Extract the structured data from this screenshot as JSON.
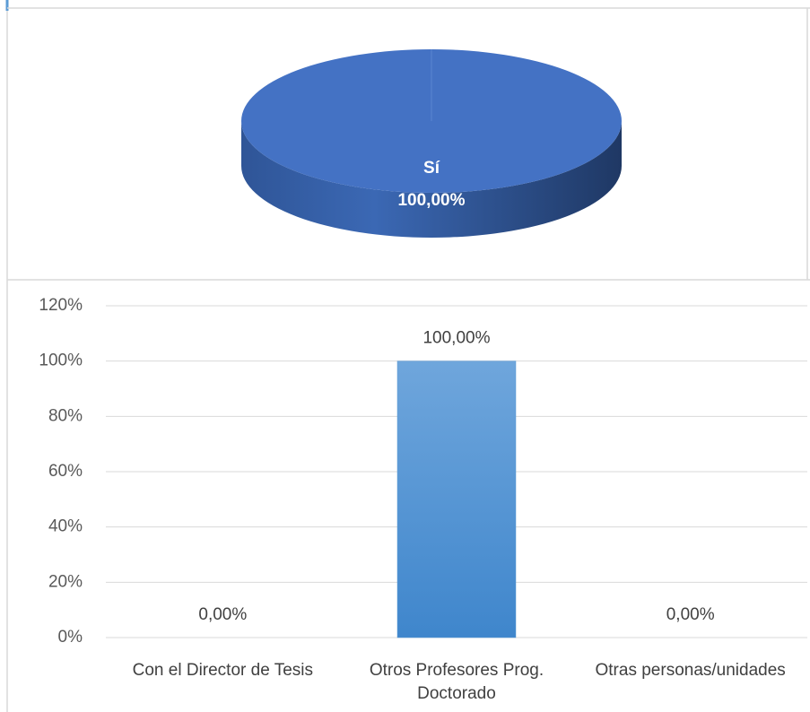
{
  "chart_data": [
    {
      "type": "pie",
      "categories": [
        "Sí"
      ],
      "values": [
        100
      ],
      "value_labels": [
        "100,00%"
      ],
      "colors": [
        "#4472c4"
      ]
    },
    {
      "type": "bar",
      "categories": [
        "Con el Director de Tesis",
        "Otros Profesores Prog. Doctorado",
        "Otras personas/unidades"
      ],
      "values": [
        0,
        100,
        0
      ],
      "value_labels": [
        "0,00%",
        "100,00%",
        "0,00%"
      ],
      "color": "#5b9bd5",
      "ylim": [
        0,
        120
      ],
      "yticks": [
        {
          "value": 0,
          "label": "0%"
        },
        {
          "value": 20,
          "label": "20%"
        },
        {
          "value": 40,
          "label": "40%"
        },
        {
          "value": 60,
          "label": "60%"
        },
        {
          "value": 80,
          "label": "80%"
        },
        {
          "value": 100,
          "label": "100%"
        },
        {
          "value": 120,
          "label": "120%"
        }
      ],
      "grid": true
    }
  ]
}
